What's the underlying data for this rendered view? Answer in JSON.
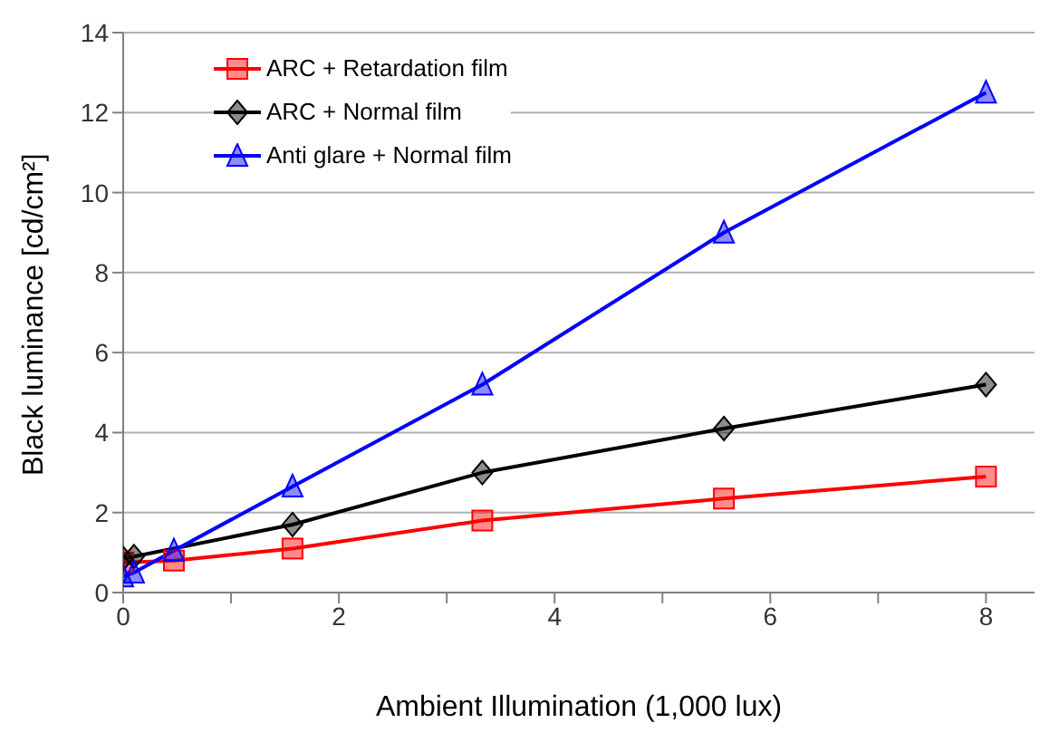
{
  "chart_data": {
    "type": "line",
    "xlabel": "Ambient Illumination (1,000 lux)",
    "ylabel": "Black luminance [cd/cm²]",
    "x": [
      0,
      0.1,
      0.47,
      1.57,
      3.33,
      5.57,
      8
    ],
    "series": [
      {
        "name": "ARC + Retardation film",
        "color": "#ff0000",
        "marker": "square",
        "values": [
          0.75,
          null,
          0.8,
          1.1,
          1.8,
          2.35,
          2.9
        ]
      },
      {
        "name": "ARC + Normal film",
        "color": "#000000",
        "marker": "diamond",
        "values": [
          0.85,
          0.9,
          null,
          1.7,
          3.0,
          4.1,
          5.2
        ]
      },
      {
        "name": "Anti glare + Normal film",
        "color": "#0000ff",
        "marker": "triangle",
        "values": [
          0.4,
          0.5,
          1.05,
          2.65,
          5.2,
          9.0,
          12.5
        ]
      }
    ],
    "xlim": [
      0,
      8.45
    ],
    "xticks": [
      0,
      {
        "value": 1,
        "label": null
      },
      2,
      {
        "value": 3,
        "label": null
      },
      4,
      {
        "value": 5,
        "label": null
      },
      6,
      {
        "value": 7,
        "label": null
      },
      8
    ],
    "ylim": [
      0,
      14
    ],
    "yticks": [
      0,
      2,
      4,
      6,
      8,
      10,
      12,
      14
    ],
    "grid": "y",
    "legend": "top left",
    "line_style": "solid"
  }
}
